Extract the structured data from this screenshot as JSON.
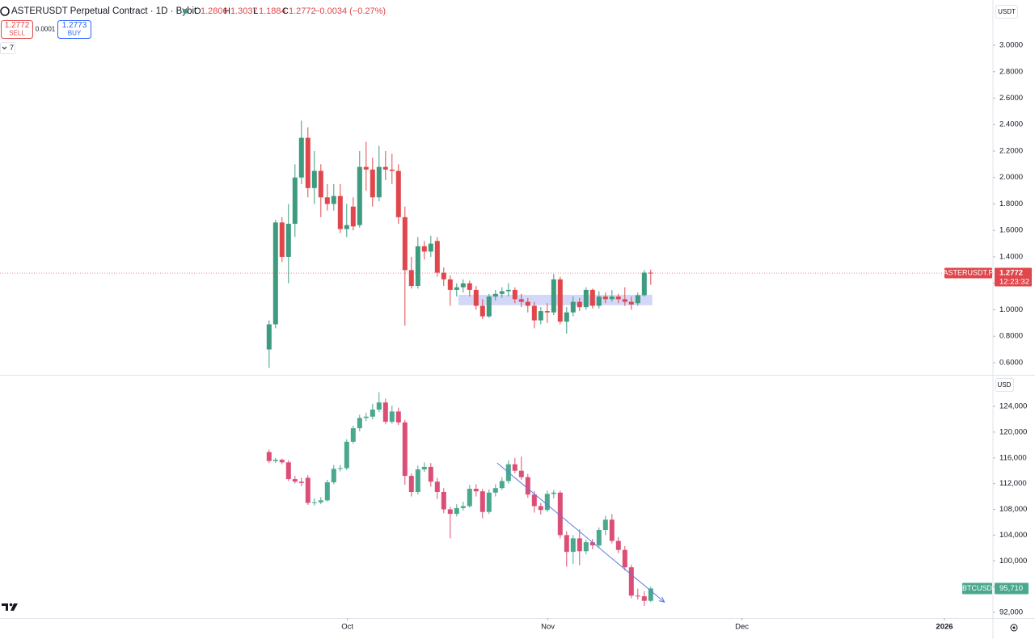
{
  "header": {
    "title": "ASTERUSDT Perpetual Contract · 1D · Bybit",
    "o": "O",
    "h": "H",
    "l": "L",
    "c": "C",
    "change": "−0.0034 (−0.27%)",
    "sell_price": 1.2772,
    "sell": "SELL",
    "spread": 0.0001,
    "buy_price": 1.2773,
    "buy": "BUY",
    "indicators": 7
  },
  "chart_data": [
    {
      "type": "candlestick",
      "currency": "USDT",
      "xlim": [
        -41.6,
        111.9
      ],
      "ylim": [
        0.508,
        3.342
      ],
      "yticks": [
        {
          "value": 0.6,
          "label": "0.6000"
        },
        {
          "value": 0.8,
          "label": "0.8000"
        },
        {
          "value": 1,
          "label": "1.0000"
        },
        {
          "value": 1.2,
          "label": "1.2000"
        },
        {
          "value": 1.4,
          "label": "1.4000"
        },
        {
          "value": 1.6,
          "label": "1.6000"
        },
        {
          "value": 1.8,
          "label": "1.8000"
        },
        {
          "value": 2,
          "label": "2.0000"
        },
        {
          "value": 2.2,
          "label": "2.2000"
        },
        {
          "value": 2.4,
          "label": "2.4000"
        },
        {
          "value": 2.6,
          "label": "2.6000"
        },
        {
          "value": 2.8,
          "label": "2.8000"
        },
        {
          "value": 3,
          "label": "3.0000"
        }
      ],
      "grid": false,
      "series": [
        {
          "up_color": "#3d9b7f",
          "down_color": "#e0474c",
          "open": [
            0.7,
            0.89,
            1.66,
            1.4,
            1.65,
            2.0,
            2.3,
            1.92,
            2.05,
            1.85,
            1.8,
            1.86,
            1.61,
            1.78,
            1.64,
            2.08,
            2.06,
            1.85,
            2.08,
            2.06,
            2.05,
            1.7,
            1.3,
            1.18,
            1.48,
            1.44,
            1.52,
            1.28,
            1.23,
            1.15,
            1.17,
            1.2,
            1.15,
            1.03,
            0.95,
            1.1,
            1.12,
            1.14,
            1.15,
            1.08,
            1.06,
            1.03,
            0.92,
            0.99,
            0.98,
            1.23,
            0.91,
            0.98,
            1.06,
            1.02,
            1.15,
            1.03,
            1.1,
            1.08,
            1.1,
            1.08,
            1.06,
            1.05,
            1.11,
            1.2806
          ],
          "high": [
            0.92,
            1.68,
            1.7,
            1.8,
            2.1,
            2.43,
            2.38,
            2.2,
            2.1,
            1.95,
            1.95,
            1.95,
            1.8,
            1.85,
            2.2,
            2.27,
            2.15,
            2.24,
            2.2,
            2.18,
            2.1,
            1.78,
            1.4,
            1.55,
            1.52,
            1.56,
            1.55,
            1.32,
            1.26,
            1.2,
            1.23,
            1.22,
            1.18,
            1.08,
            1.12,
            1.15,
            1.17,
            1.2,
            1.17,
            1.12,
            1.09,
            1.06,
            1.02,
            1.05,
            1.27,
            1.25,
            1.02,
            1.1,
            1.09,
            1.17,
            1.16,
            1.14,
            1.13,
            1.15,
            1.12,
            1.17,
            1.1,
            1.13,
            1.3,
            1.3037
          ],
          "low": [
            0.56,
            0.86,
            1.36,
            1.2,
            1.55,
            1.95,
            1.85,
            1.8,
            1.7,
            1.75,
            1.75,
            1.58,
            1.55,
            1.6,
            1.62,
            1.9,
            1.78,
            1.82,
            1.98,
            1.95,
            1.65,
            0.88,
            1.16,
            1.16,
            1.38,
            1.4,
            1.25,
            1.18,
            1.03,
            1.1,
            1.13,
            1.1,
            1.0,
            0.93,
            0.94,
            1.07,
            1.09,
            1.1,
            1.05,
            1.02,
            0.98,
            0.86,
            0.89,
            0.9,
            0.96,
            0.89,
            0.82,
            0.95,
            0.99,
            1.0,
            1.01,
            1.01,
            1.05,
            1.06,
            1.05,
            1.03,
            1.0,
            1.03,
            1.1,
            1.1884
          ],
          "close": [
            0.89,
            1.66,
            1.4,
            1.65,
            2.0,
            2.3,
            1.92,
            2.05,
            1.85,
            1.8,
            1.86,
            1.61,
            1.64,
            1.63,
            2.08,
            2.06,
            1.85,
            2.08,
            2.06,
            2.05,
            1.7,
            1.3,
            1.18,
            1.48,
            1.44,
            1.5,
            1.28,
            1.23,
            1.15,
            1.17,
            1.2,
            1.15,
            1.03,
            0.95,
            1.1,
            1.12,
            1.14,
            1.15,
            1.08,
            1.06,
            1.03,
            0.92,
            0.99,
            0.98,
            1.23,
            0.91,
            0.98,
            1.06,
            1.02,
            1.15,
            1.03,
            1.1,
            1.08,
            1.1,
            1.08,
            1.06,
            1.04,
            1.11,
            1.2806,
            1.2772
          ]
        }
      ],
      "zone": {
        "x": [
          29.25,
          59.25
        ],
        "y": [
          1.034,
          1.113
        ],
        "color": "#c5cbf5"
      },
      "last_price_label": {
        "symbol": "ASTERUSDT.P",
        "countdown": "12:23:32"
      }
    },
    {
      "type": "candlestick",
      "currency": "USD",
      "xlim": [
        -41.6,
        111.9
      ],
      "ylim": [
        91127,
        128768
      ],
      "yticks": [
        {
          "value": 92000,
          "label": "92,000"
        },
        {
          "value": 96000,
          "label": "96,000"
        },
        {
          "value": 100000,
          "label": "100,000"
        },
        {
          "value": 104000,
          "label": "104,000"
        },
        {
          "value": 108000,
          "label": "108,000"
        },
        {
          "value": 112000,
          "label": "112,000"
        },
        {
          "value": 116000,
          "label": "116,000"
        },
        {
          "value": 120000,
          "label": "120,000"
        },
        {
          "value": 124000,
          "label": "124,000"
        }
      ],
      "xticks": [
        {
          "value": 12.1,
          "label": "Oct"
        },
        {
          "value": 43.1,
          "label": "Nov"
        },
        {
          "value": 73.1,
          "label": "Dec"
        },
        {
          "value": 104.4,
          "label": "2026"
        }
      ],
      "grid": false,
      "series": [
        {
          "up_color": "#4aa88f",
          "down_color": "#db4f76",
          "open": [
            116900,
            115500,
            115700,
            115300,
            112700,
            112300,
            112900,
            109000,
            109100,
            109400,
            112200,
            114300,
            114400,
            118500,
            120600,
            122200,
            122400,
            123500,
            124600,
            121600,
            123200,
            121500,
            113200,
            110700,
            114200,
            114600,
            112300,
            110700,
            108000,
            107300,
            108200,
            108500,
            111200,
            110800,
            107600,
            110600,
            111300,
            112400,
            115000,
            114000,
            113000,
            110300,
            108500,
            107900,
            110400,
            110600,
            104000,
            101400,
            103500,
            101500,
            102900,
            102400,
            104800,
            106400,
            103100,
            101700,
            99000,
            94600,
            94500,
            93800
          ],
          "high": [
            117300,
            116000,
            115900,
            115600,
            113200,
            112900,
            113300,
            109700,
            109900,
            112600,
            114900,
            114900,
            118900,
            121000,
            122700,
            123000,
            124400,
            126200,
            125200,
            124100,
            123800,
            121900,
            113600,
            114800,
            115300,
            115200,
            112900,
            111300,
            108400,
            108800,
            109200,
            111800,
            111900,
            111200,
            111100,
            111900,
            113000,
            115600,
            116000,
            116200,
            113500,
            110800,
            109000,
            110900,
            111000,
            110900,
            104600,
            104000,
            104900,
            103300,
            103400,
            105200,
            107000,
            107300,
            103700,
            102300,
            99400,
            95700,
            95300,
            96000
          ],
          "low": [
            115200,
            115200,
            115000,
            112400,
            112000,
            111600,
            108700,
            108600,
            108800,
            109200,
            111900,
            113900,
            114100,
            118200,
            120100,
            121700,
            122000,
            123100,
            121200,
            121300,
            121100,
            111800,
            110000,
            110300,
            113800,
            111500,
            109600,
            107400,
            103500,
            106900,
            107800,
            108300,
            110000,
            106600,
            107300,
            110000,
            111000,
            112000,
            113600,
            112600,
            109800,
            107500,
            107200,
            107600,
            109700,
            103500,
            99100,
            99500,
            99300,
            101000,
            101800,
            102000,
            104000,
            102700,
            101200,
            98500,
            94200,
            94000,
            93000,
            93600
          ],
          "close": [
            115500,
            115700,
            115300,
            112700,
            112300,
            112100,
            109000,
            109100,
            109400,
            112200,
            114300,
            114400,
            118500,
            120600,
            122200,
            122400,
            123500,
            124600,
            121600,
            123200,
            121500,
            113200,
            110700,
            114200,
            114600,
            112300,
            110700,
            108000,
            107300,
            108200,
            108500,
            111200,
            110800,
            107600,
            110600,
            111300,
            112400,
            115000,
            114000,
            113000,
            110300,
            108500,
            107900,
            110400,
            110600,
            104000,
            101400,
            103500,
            101500,
            102900,
            102400,
            104800,
            106400,
            103100,
            101700,
            99000,
            94600,
            94500,
            93800,
            95710
          ]
        }
      ],
      "trendline": {
        "x": [
          35.25,
          61.1
        ],
        "y": [
          115200,
          93600
        ],
        "color": "#5b7be0"
      },
      "last_price_label": {
        "symbol": "BTCUSD",
        "label": "95,710"
      }
    }
  ]
}
